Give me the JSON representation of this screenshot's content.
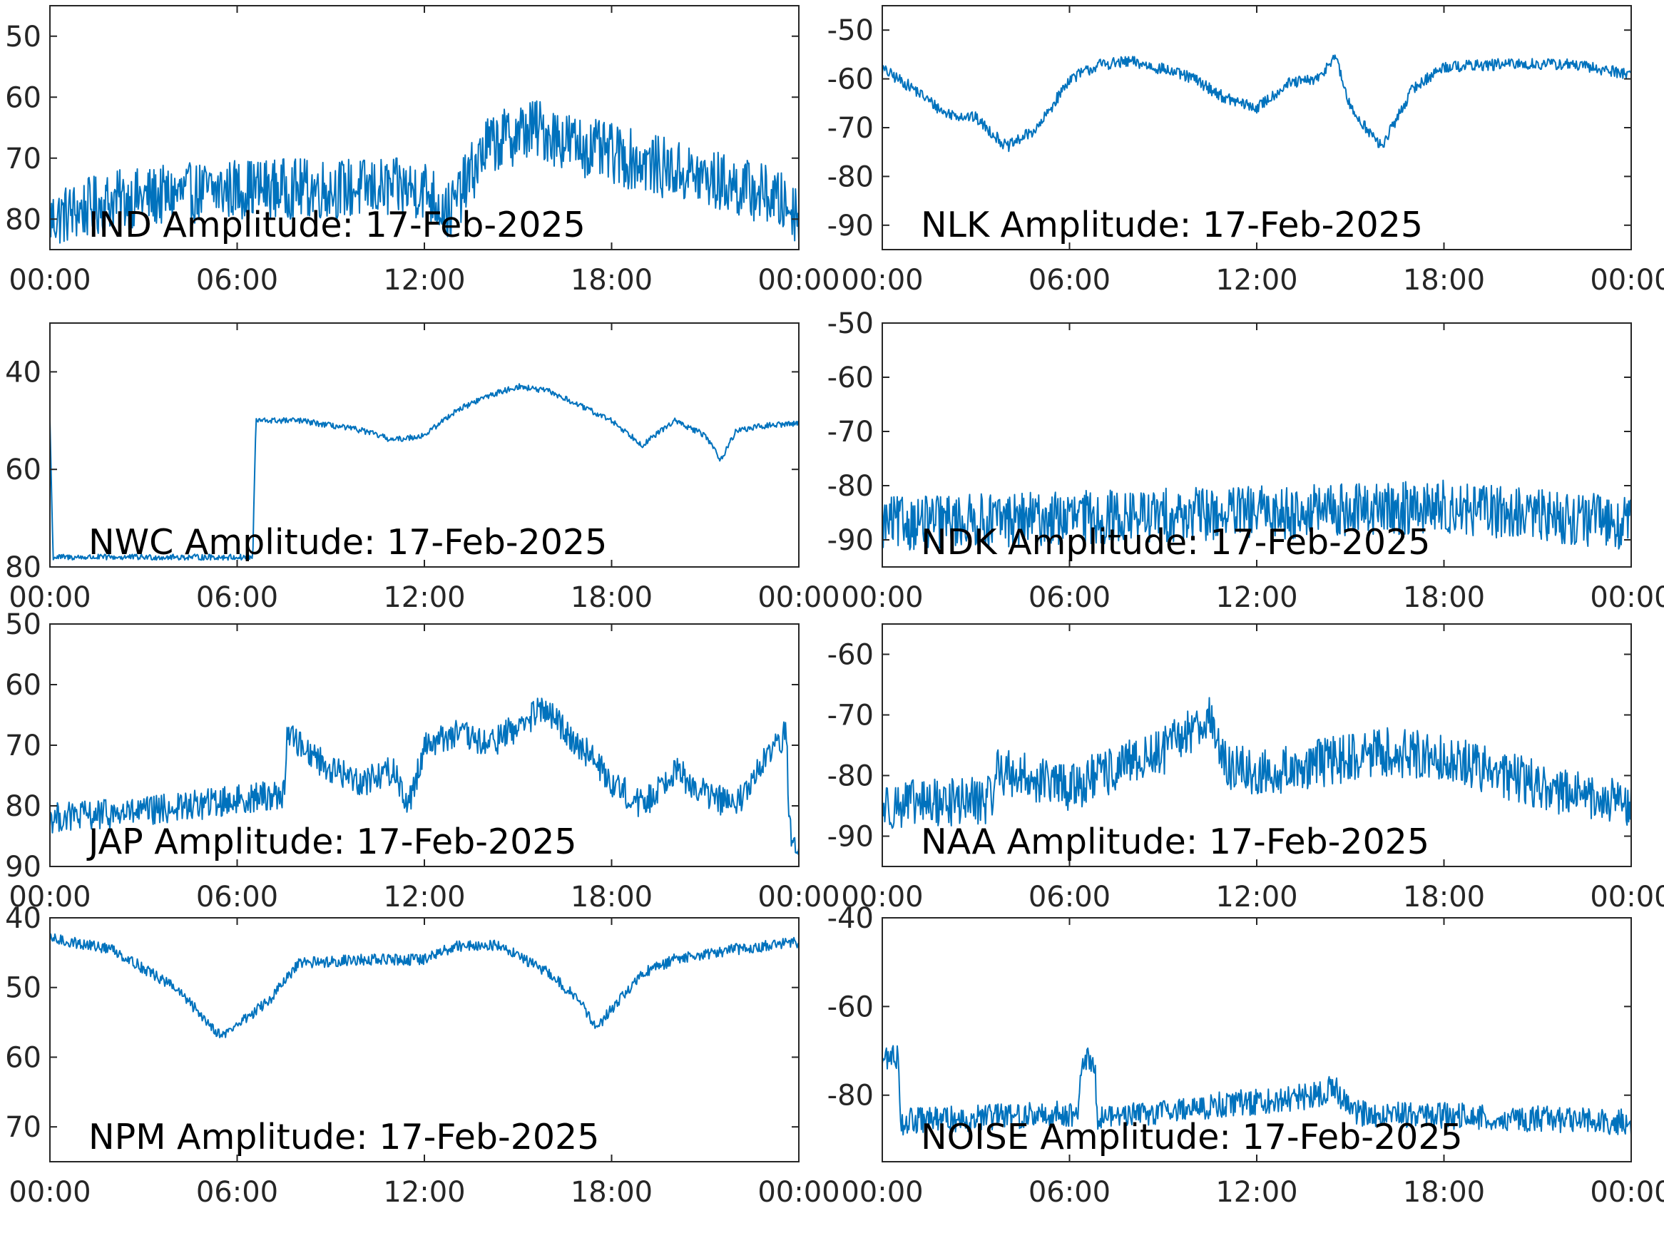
{
  "figure": {
    "colors": {
      "trace": "#0072BD",
      "axes": "#262626",
      "text": "#000000",
      "background": "#ffffff"
    }
  },
  "chart_data": [
    {
      "type": "line",
      "title": "IND Amplitude: 17-Feb-2025",
      "xlabel": "",
      "ylabel": "",
      "xlim": [
        "00:00",
        "24:00"
      ],
      "xticks": [
        "00:00",
        "06:00",
        "12:00",
        "18:00",
        "00:00"
      ],
      "ylim": [
        -85,
        -45
      ],
      "yticks": [
        -50,
        -60,
        -70,
        -80
      ],
      "ytick_labels": [
        "50",
        "60",
        "70",
        "80"
      ],
      "noise": 5,
      "series": [
        {
          "x_hours": [
            0,
            2,
            6,
            12,
            12.8,
            14,
            15.5,
            17,
            20,
            23,
            24
          ],
          "values": [
            -80,
            -77,
            -75,
            -75,
            -79,
            -68,
            -65,
            -68,
            -72,
            -76,
            -79
          ]
        }
      ]
    },
    {
      "type": "line",
      "title": "NLK Amplitude: 17-Feb-2025",
      "xlabel": "",
      "ylabel": "",
      "xlim": [
        "00:00",
        "24:00"
      ],
      "xticks": [
        "00:00",
        "06:00",
        "12:00",
        "18:00",
        "00:00"
      ],
      "ylim": [
        -95,
        -45
      ],
      "yticks": [
        -50,
        -60,
        -70,
        -80,
        -90
      ],
      "ytick_labels": [
        "-50",
        "-60",
        "-70",
        "-80",
        "-90"
      ],
      "noise": 1.2,
      "series": [
        {
          "x_hours": [
            0,
            1,
            2,
            3,
            4,
            5,
            6,
            7,
            8,
            9,
            10,
            11,
            12,
            13,
            14,
            14.5,
            15,
            15.5,
            16,
            17,
            18,
            20,
            22,
            24
          ],
          "values": [
            -58,
            -62,
            -67,
            -68,
            -74,
            -70,
            -60,
            -57,
            -56.5,
            -58,
            -60,
            -64,
            -66,
            -61,
            -60,
            -55,
            -66,
            -70,
            -74,
            -62,
            -57.5,
            -57,
            -57,
            -59
          ]
        }
      ]
    },
    {
      "type": "line",
      "title": "NWC Amplitude: 17-Feb-2025",
      "xlabel": "",
      "ylabel": "",
      "xlim": [
        "00:00",
        "24:00"
      ],
      "xticks": [
        "00:00",
        "06:00",
        "12:00",
        "18:00",
        "00:00"
      ],
      "ylim": [
        -80,
        -30
      ],
      "yticks": [
        -40,
        -60,
        -80
      ],
      "ytick_labels": [
        "40",
        "60",
        "80"
      ],
      "noise": 0.6,
      "series": [
        {
          "x_hours": [
            0,
            0.1,
            3,
            6.5,
            6.6,
            8,
            10,
            11,
            12,
            13,
            14,
            15,
            16,
            17,
            18,
            19,
            20,
            21,
            21.5,
            22,
            23,
            24
          ],
          "values": [
            -50,
            -78,
            -78,
            -78,
            -50,
            -50,
            -52,
            -54,
            -53,
            -48,
            -45,
            -43,
            -44,
            -47,
            -50,
            -55,
            -50,
            -53,
            -58,
            -52,
            -51,
            -50.5
          ]
        }
      ]
    },
    {
      "type": "line",
      "title": "NDK Amplitude: 17-Feb-2025",
      "xlabel": "",
      "ylabel": "",
      "xlim": [
        "00:00",
        "24:00"
      ],
      "xticks": [
        "00:00",
        "06:00",
        "12:00",
        "18:00",
        "00:00"
      ],
      "ylim": [
        -95,
        -50
      ],
      "yticks": [
        -50,
        -60,
        -70,
        -80,
        -90
      ],
      "ytick_labels": [
        "-50",
        "-60",
        "-70",
        "-80",
        "-90"
      ],
      "noise": 5,
      "series": [
        {
          "x_hours": [
            0,
            6,
            12,
            18,
            24
          ],
          "values": [
            -87,
            -86,
            -85,
            -84,
            -87
          ]
        }
      ]
    },
    {
      "type": "line",
      "title": "JAP Amplitude: 17-Feb-2025",
      "xlabel": "",
      "ylabel": "",
      "xlim": [
        "00:00",
        "24:00"
      ],
      "xticks": [
        "00:00",
        "06:00",
        "12:00",
        "18:00",
        "00:00"
      ],
      "ylim": [
        -90,
        -50
      ],
      "yticks": [
        -50,
        -60,
        -70,
        -80,
        -90
      ],
      "ytick_labels": [
        "50",
        "60",
        "70",
        "80",
        "90"
      ],
      "noise": 2.5,
      "series": [
        {
          "x_hours": [
            0,
            3,
            7.5,
            7.6,
            9,
            10,
            11,
            11.5,
            12,
            13,
            14,
            15,
            15.8,
            17,
            18,
            19,
            20,
            21,
            22,
            23,
            23.6,
            23.7,
            24
          ],
          "values": [
            -82,
            -81,
            -78,
            -68,
            -74,
            -76,
            -74,
            -80,
            -70,
            -68,
            -70,
            -67,
            -64,
            -70,
            -76,
            -80,
            -74,
            -78,
            -80,
            -72,
            -68,
            -84,
            -86
          ]
        }
      ]
    },
    {
      "type": "line",
      "title": "NAA Amplitude: 17-Feb-2025",
      "xlabel": "",
      "ylabel": "",
      "xlim": [
        "00:00",
        "24:00"
      ],
      "xticks": [
        "00:00",
        "06:00",
        "12:00",
        "18:00",
        "00:00"
      ],
      "ylim": [
        -95,
        -55
      ],
      "yticks": [
        -60,
        -70,
        -80,
        -90
      ],
      "ytick_labels": [
        "-60",
        "-70",
        "-80",
        "-90"
      ],
      "noise": 4,
      "series": [
        {
          "x_hours": [
            0,
            3.5,
            3.6,
            6,
            9,
            10.5,
            10.9,
            12,
            14,
            16,
            18,
            20,
            22,
            24
          ],
          "values": [
            -85,
            -84,
            -79,
            -82,
            -76,
            -70,
            -78,
            -80,
            -78,
            -76,
            -77,
            -80,
            -83,
            -85
          ]
        }
      ]
    },
    {
      "type": "line",
      "title": "NPM Amplitude: 17-Feb-2025",
      "xlabel": "",
      "ylabel": "",
      "xlim": [
        "00:00",
        "24:00"
      ],
      "xticks": [
        "00:00",
        "06:00",
        "12:00",
        "18:00",
        "00:00"
      ],
      "ylim": [
        -75,
        -40
      ],
      "yticks": [
        -40,
        -50,
        -60,
        -70
      ],
      "ytick_labels": [
        "40",
        "50",
        "60",
        "70"
      ],
      "noise": 0.8,
      "series": [
        {
          "x_hours": [
            0,
            2,
            4,
            5.5,
            7,
            8,
            10,
            12,
            13,
            14.5,
            16,
            17,
            17.5,
            18,
            19,
            20,
            22,
            24
          ],
          "values": [
            -43,
            -44.5,
            -50,
            -57,
            -52,
            -46.5,
            -46,
            -46,
            -44,
            -44,
            -48,
            -52,
            -56,
            -53,
            -48,
            -46,
            -44.5,
            -43.5
          ]
        }
      ]
    },
    {
      "type": "line",
      "title": "NOISE Amplitude: 17-Feb-2025",
      "xlabel": "",
      "ylabel": "",
      "xlim": [
        "00:00",
        "24:00"
      ],
      "xticks": [
        "00:00",
        "06:00",
        "12:00",
        "18:00",
        "00:00"
      ],
      "ylim": [
        -95,
        -40
      ],
      "yticks": [
        -40,
        -60,
        -80
      ],
      "ytick_labels": [
        "-40",
        "-60",
        "-80"
      ],
      "noise": 3,
      "series": [
        {
          "x_hours": [
            0,
            0.5,
            0.6,
            6.3,
            6.4,
            6.8,
            6.9,
            14,
            14.5,
            15,
            24
          ],
          "values": [
            -72,
            -71,
            -86,
            -84,
            -72,
            -72,
            -85,
            -80,
            -78,
            -84,
            -86
          ]
        }
      ]
    }
  ]
}
